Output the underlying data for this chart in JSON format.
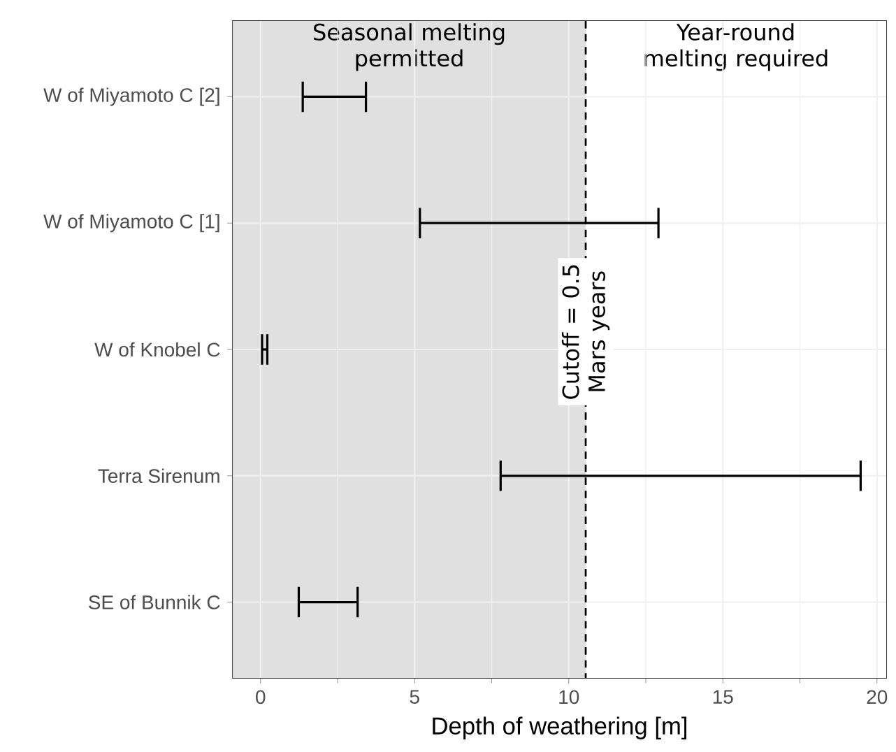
{
  "chart_data": {
    "type": "bar",
    "orientation": "horizontal",
    "xlabel": "Depth of weathering [m]",
    "categories": [
      "W of Miyamoto C [2]",
      "W of Miyamoto C [1]",
      "W of Knobel C",
      "Terra Sirenum",
      "SE of Bunnik C"
    ],
    "base": [
      1.37,
      5.17,
      0.05,
      7.79,
      1.24
    ],
    "values": [
      2.05,
      7.74,
      0.17,
      11.68,
      1.91
    ],
    "color": "#000000",
    "xlim": [
      -0.9,
      20.3
    ],
    "xticks": [
      0,
      5,
      10,
      15,
      20
    ],
    "grid": true,
    "ref_lines": [
      {
        "axis": "x",
        "value": 10.55,
        "line_style": "dashed",
        "color": "#000000"
      }
    ],
    "annotations": [
      {
        "text": "Cutoff = 0.5 Mars years",
        "x": 10.55
      }
    ],
    "bands": [
      {
        "axis": "x",
        "from": -0.9,
        "to": 10.55,
        "label": "Seasonal melting permitted",
        "color": "#e0e0e0"
      },
      {
        "axis": "x",
        "from": 10.55,
        "to": 20.3,
        "label": "Year-round melting required",
        "color": "#ffffff"
      }
    ]
  }
}
